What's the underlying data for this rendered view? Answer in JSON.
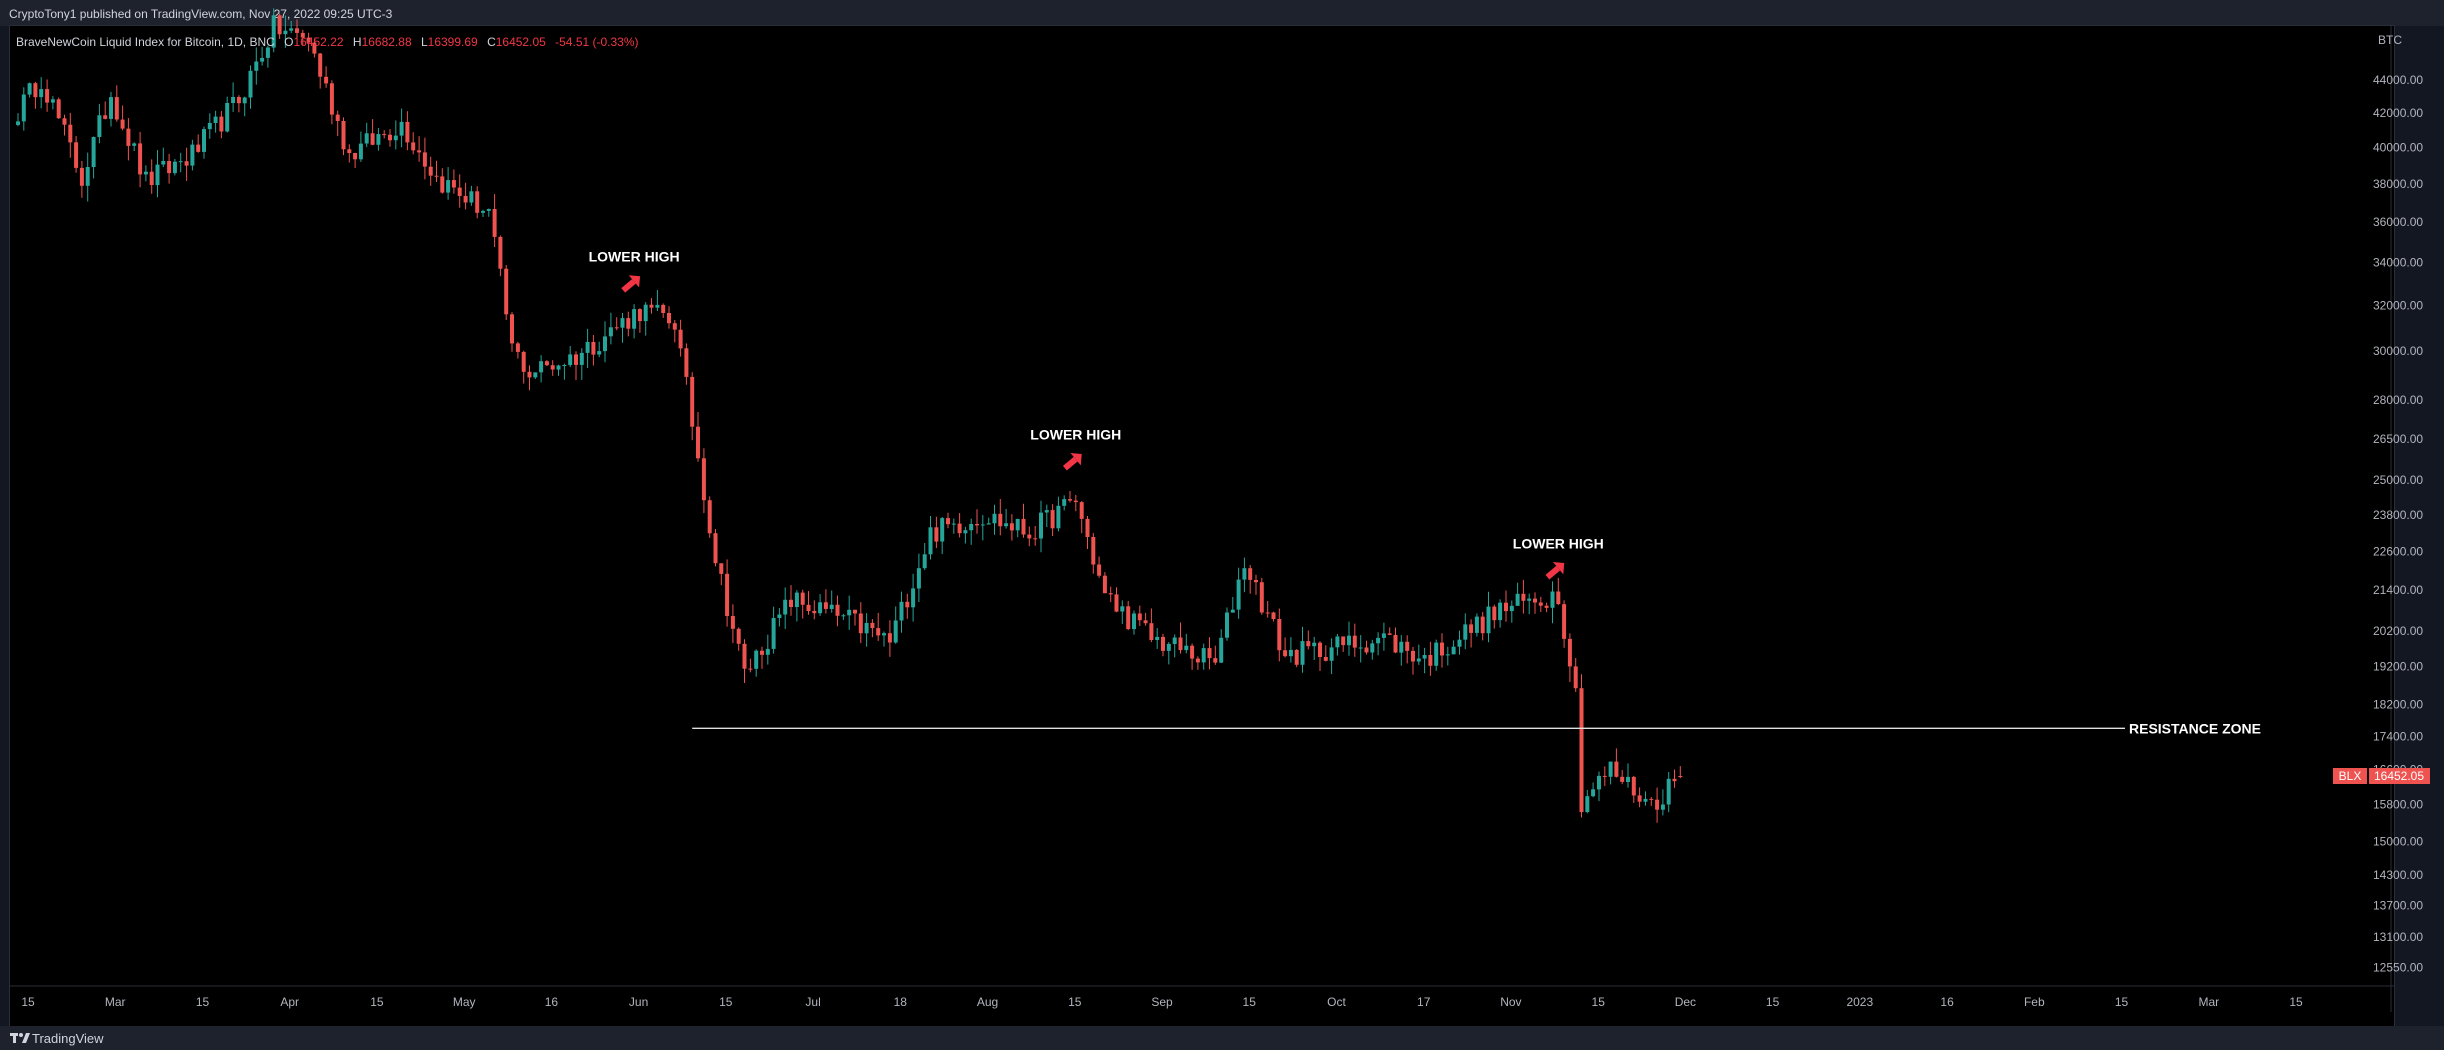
{
  "header": {
    "published": "CryptoTony1 published on TradingView.com, Nov 27, 2022 09:25 UTC-3"
  },
  "legend": {
    "symbol": "BraveNewCoin Liquid Index for Bitcoin, 1D, BNC",
    "open_label": "O",
    "open": "16452.22",
    "high_label": "H",
    "high": "16682.88",
    "low_label": "L",
    "low": "16399.69",
    "close_label": "C",
    "close": "16452.05",
    "change": "-54.51 (-0.33%)"
  },
  "price_axis": {
    "currency": "BTC",
    "ticks": [
      "44000.00",
      "42000.00",
      "40000.00",
      "38000.00",
      "36000.00",
      "34000.00",
      "32000.00",
      "30000.00",
      "28000.00",
      "26500.00",
      "25000.00",
      "23800.00",
      "22600.00",
      "21400.00",
      "20200.00",
      "19200.00",
      "18200.00",
      "17400.00",
      "16600.00",
      "15800.00",
      "15000.00",
      "14300.00",
      "13700.00",
      "13100.00",
      "12550.00"
    ],
    "last_price_symbol": "BLX",
    "last_price": "16452.05"
  },
  "time_axis": {
    "labels": [
      "15",
      "Mar",
      "15",
      "Apr",
      "15",
      "May",
      "16",
      "Jun",
      "15",
      "Jul",
      "18",
      "Aug",
      "15",
      "Sep",
      "15",
      "Oct",
      "17",
      "Nov",
      "15",
      "Dec",
      "15",
      "2023",
      "16",
      "Feb",
      "15",
      "Mar",
      "15"
    ]
  },
  "annotations": [
    {
      "text": "LOWER HIGH",
      "date": "2022-05-30",
      "price": 32400
    },
    {
      "text": "LOWER HIGH",
      "date": "2022-08-14",
      "price": 25200
    },
    {
      "text": "LOWER HIGH",
      "date": "2022-11-05",
      "price": 21600
    }
  ],
  "resistance": {
    "label": "RESISTANCE ZONE",
    "price": 17600,
    "start": "2022-06-09"
  },
  "footer": {
    "brand": "TradingView"
  },
  "colors": {
    "up": "#26a69a",
    "down": "#ef5350",
    "background": "#000000",
    "panel": "#131722",
    "arrow": "#f23645"
  },
  "chart_data": {
    "type": "candlestick",
    "title": "BraveNewCoin Liquid Index for Bitcoin, 1D, BNC",
    "interval": "1D",
    "scale": "log",
    "ylim": [
      12400,
      47500
    ],
    "xlim": [
      "2022-02-13",
      "2023-03-25"
    ],
    "keypoints": [
      {
        "date": "2022-02-13",
        "close": 42100
      },
      {
        "date": "2022-02-17",
        "close": 44200
      },
      {
        "date": "2022-02-24",
        "close": 38300
      },
      {
        "date": "2022-03-01",
        "close": 43200
      },
      {
        "date": "2022-03-07",
        "close": 38100
      },
      {
        "date": "2022-03-15",
        "close": 39600
      },
      {
        "date": "2022-03-23",
        "close": 42800
      },
      {
        "date": "2022-03-29",
        "close": 47400
      },
      {
        "date": "2022-04-04",
        "close": 46600
      },
      {
        "date": "2022-04-11",
        "close": 39600
      },
      {
        "date": "2022-04-20",
        "close": 41400
      },
      {
        "date": "2022-04-26",
        "close": 38300
      },
      {
        "date": "2022-05-05",
        "close": 36500
      },
      {
        "date": "2022-05-09",
        "close": 30100
      },
      {
        "date": "2022-05-12",
        "close": 29100
      },
      {
        "date": "2022-05-20",
        "close": 29800
      },
      {
        "date": "2022-05-31",
        "close": 31800
      },
      {
        "date": "2022-06-06",
        "close": 31300
      },
      {
        "date": "2022-06-13",
        "close": 22400
      },
      {
        "date": "2022-06-18",
        "close": 19000
      },
      {
        "date": "2022-06-26",
        "close": 21100
      },
      {
        "date": "2022-07-06",
        "close": 20500
      },
      {
        "date": "2022-07-13",
        "close": 19900
      },
      {
        "date": "2022-07-20",
        "close": 23200
      },
      {
        "date": "2022-07-29",
        "close": 23800
      },
      {
        "date": "2022-08-06",
        "close": 23200
      },
      {
        "date": "2022-08-14",
        "close": 24300
      },
      {
        "date": "2022-08-19",
        "close": 21200
      },
      {
        "date": "2022-08-27",
        "close": 20000
      },
      {
        "date": "2022-09-07",
        "close": 19300
      },
      {
        "date": "2022-09-12",
        "close": 22300
      },
      {
        "date": "2022-09-19",
        "close": 19500
      },
      {
        "date": "2022-10-06",
        "close": 20000
      },
      {
        "date": "2022-10-13",
        "close": 19400
      },
      {
        "date": "2022-10-26",
        "close": 20800
      },
      {
        "date": "2022-11-05",
        "close": 21300
      },
      {
        "date": "2022-11-08",
        "close": 18500
      },
      {
        "date": "2022-11-09",
        "close": 15900
      },
      {
        "date": "2022-11-14",
        "close": 16600
      },
      {
        "date": "2022-11-21",
        "close": 15800
      },
      {
        "date": "2022-11-26",
        "close": 16452.05
      }
    ],
    "last": {
      "open": 16452.22,
      "high": 16682.88,
      "low": 16399.69,
      "close": 16452.05
    }
  }
}
